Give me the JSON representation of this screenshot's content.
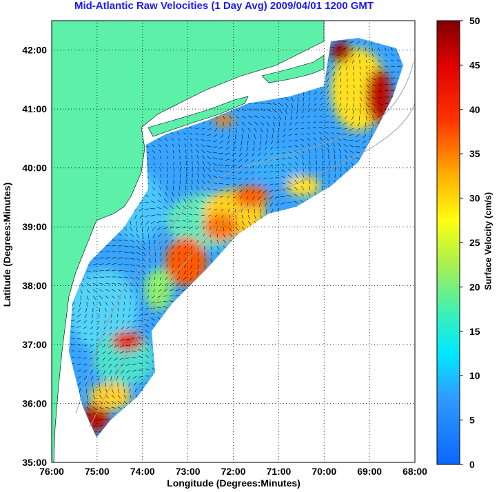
{
  "title": "Mid-Atlantic Raw Velocities (1 Day Avg) 2009/04/01 1200 GMT",
  "axes": {
    "xlabel": "Longitude (Degrees:Minutes)",
    "ylabel": "Latitude (Degrees:Minutes)",
    "x_ticks": [
      "76:00",
      "75:00",
      "74:00",
      "73:00",
      "72:00",
      "71:00",
      "70:00",
      "69:00",
      "68:00"
    ],
    "y_ticks": [
      "35:00",
      "36:00",
      "37:00",
      "38:00",
      "39:00",
      "40:00",
      "41:00",
      "42:00"
    ]
  },
  "colorbar": {
    "label": "Surface Velocity (cm/s)",
    "ticks": [
      "0",
      "5",
      "10",
      "15",
      "20",
      "25",
      "30",
      "35",
      "40",
      "45",
      "50"
    ],
    "range": [
      0,
      50
    ]
  },
  "colors": {
    "land": "#5cf0a8",
    "ocean_background": "#ffffff",
    "title": "#1a1aff",
    "bathymetry": "#a0a0a0",
    "arrows": "#000000"
  },
  "map": {
    "lon_range": [
      -76,
      -68
    ],
    "lat_range": [
      35,
      42.5
    ],
    "grid": "dotted"
  }
}
